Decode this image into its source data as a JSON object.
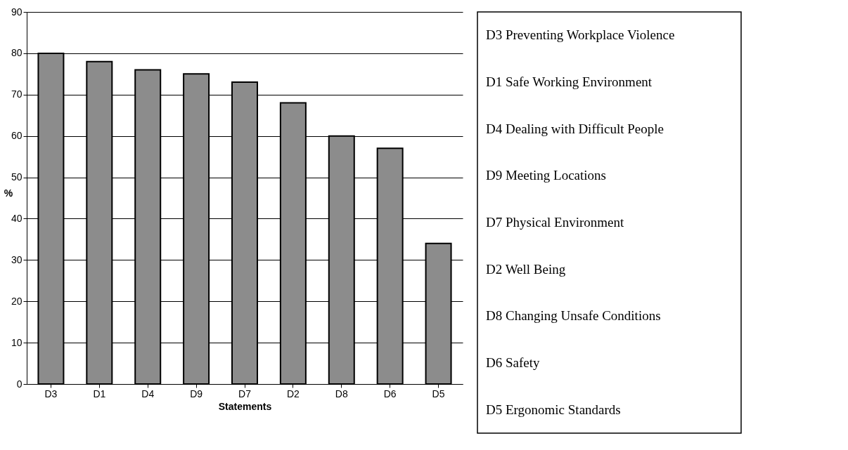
{
  "chart_data": {
    "type": "bar",
    "xlabel": "Statements",
    "ylabel": "%",
    "categories": [
      "D3",
      "D1",
      "D4",
      "D9",
      "D7",
      "D2",
      "D8",
      "D6",
      "D5"
    ],
    "values": [
      80,
      78,
      76,
      75,
      73,
      68,
      60,
      57,
      34
    ],
    "color": "#8c8c8c",
    "ylim": [
      0,
      90
    ],
    "yticks": [
      0,
      10,
      20,
      30,
      40,
      50,
      60,
      70,
      80,
      90
    ],
    "grid": "y",
    "annotations": [
      "D3 Preventing Workplace Violence",
      "D1 Safe Working Environment",
      "D4 Dealing with Difficult People",
      "D9 Meeting Locations",
      "D7 Physical Environment",
      "D2 Well Being",
      "D8 Changing Unsafe Conditions",
      "D6 Safety",
      "D5 Ergonomic Standards"
    ]
  }
}
